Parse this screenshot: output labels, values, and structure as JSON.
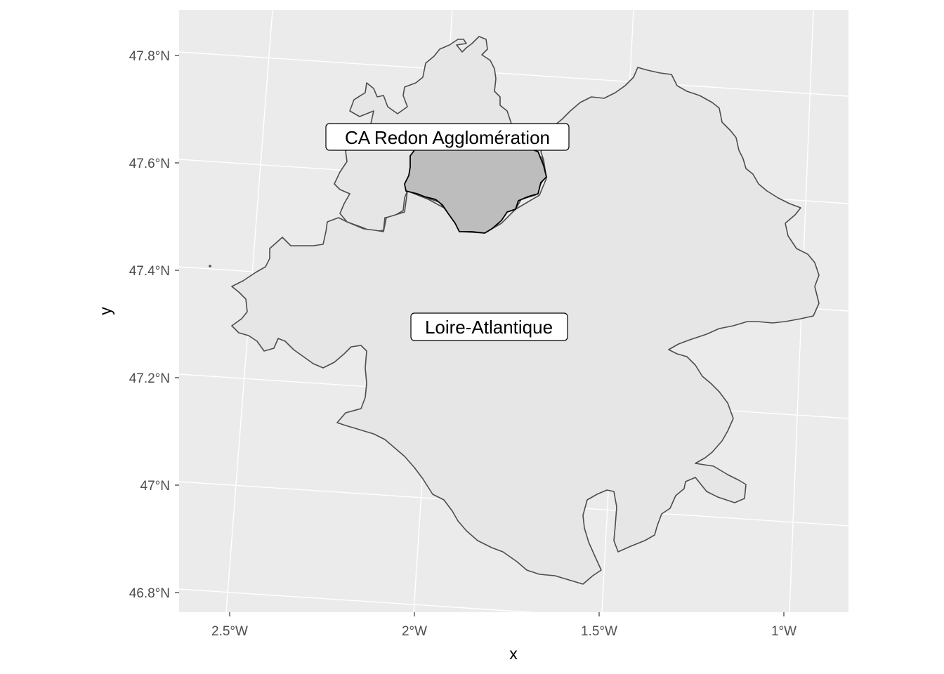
{
  "map": {
    "x_axis": {
      "title": "x",
      "ticks": [
        {
          "label": "2.5°W",
          "value": -2.5
        },
        {
          "label": "2°W",
          "value": -2.0
        },
        {
          "label": "1.5°W",
          "value": -1.5
        },
        {
          "label": "1°W",
          "value": -1.0
        }
      ]
    },
    "y_axis": {
      "title": "y",
      "ticks": [
        {
          "label": "47.8°N",
          "value": 47.8
        },
        {
          "label": "47.6°N",
          "value": 47.6
        },
        {
          "label": "47.4°N",
          "value": 47.4
        },
        {
          "label": "47.2°N",
          "value": 47.2
        },
        {
          "label": "47°N",
          "value": 47.0
        },
        {
          "label": "46.8°N",
          "value": 46.8
        }
      ]
    },
    "regions": [
      {
        "id": "loire-atlantique",
        "label": "Loire-Atlantique",
        "fill": "#e6e6e6",
        "stroke": "#4d4d4d"
      },
      {
        "id": "ille-et-vilaine-part",
        "label": "",
        "fill": "#e6e6e6",
        "stroke": "#4d4d4d"
      },
      {
        "id": "redon",
        "label": "CA Redon Agglomération",
        "fill": "#bdbdbd",
        "stroke": "#000000"
      }
    ],
    "colors": {
      "panel_background": "#ebebeb",
      "grid": "#ffffff",
      "text": "#4d4d4d"
    }
  }
}
